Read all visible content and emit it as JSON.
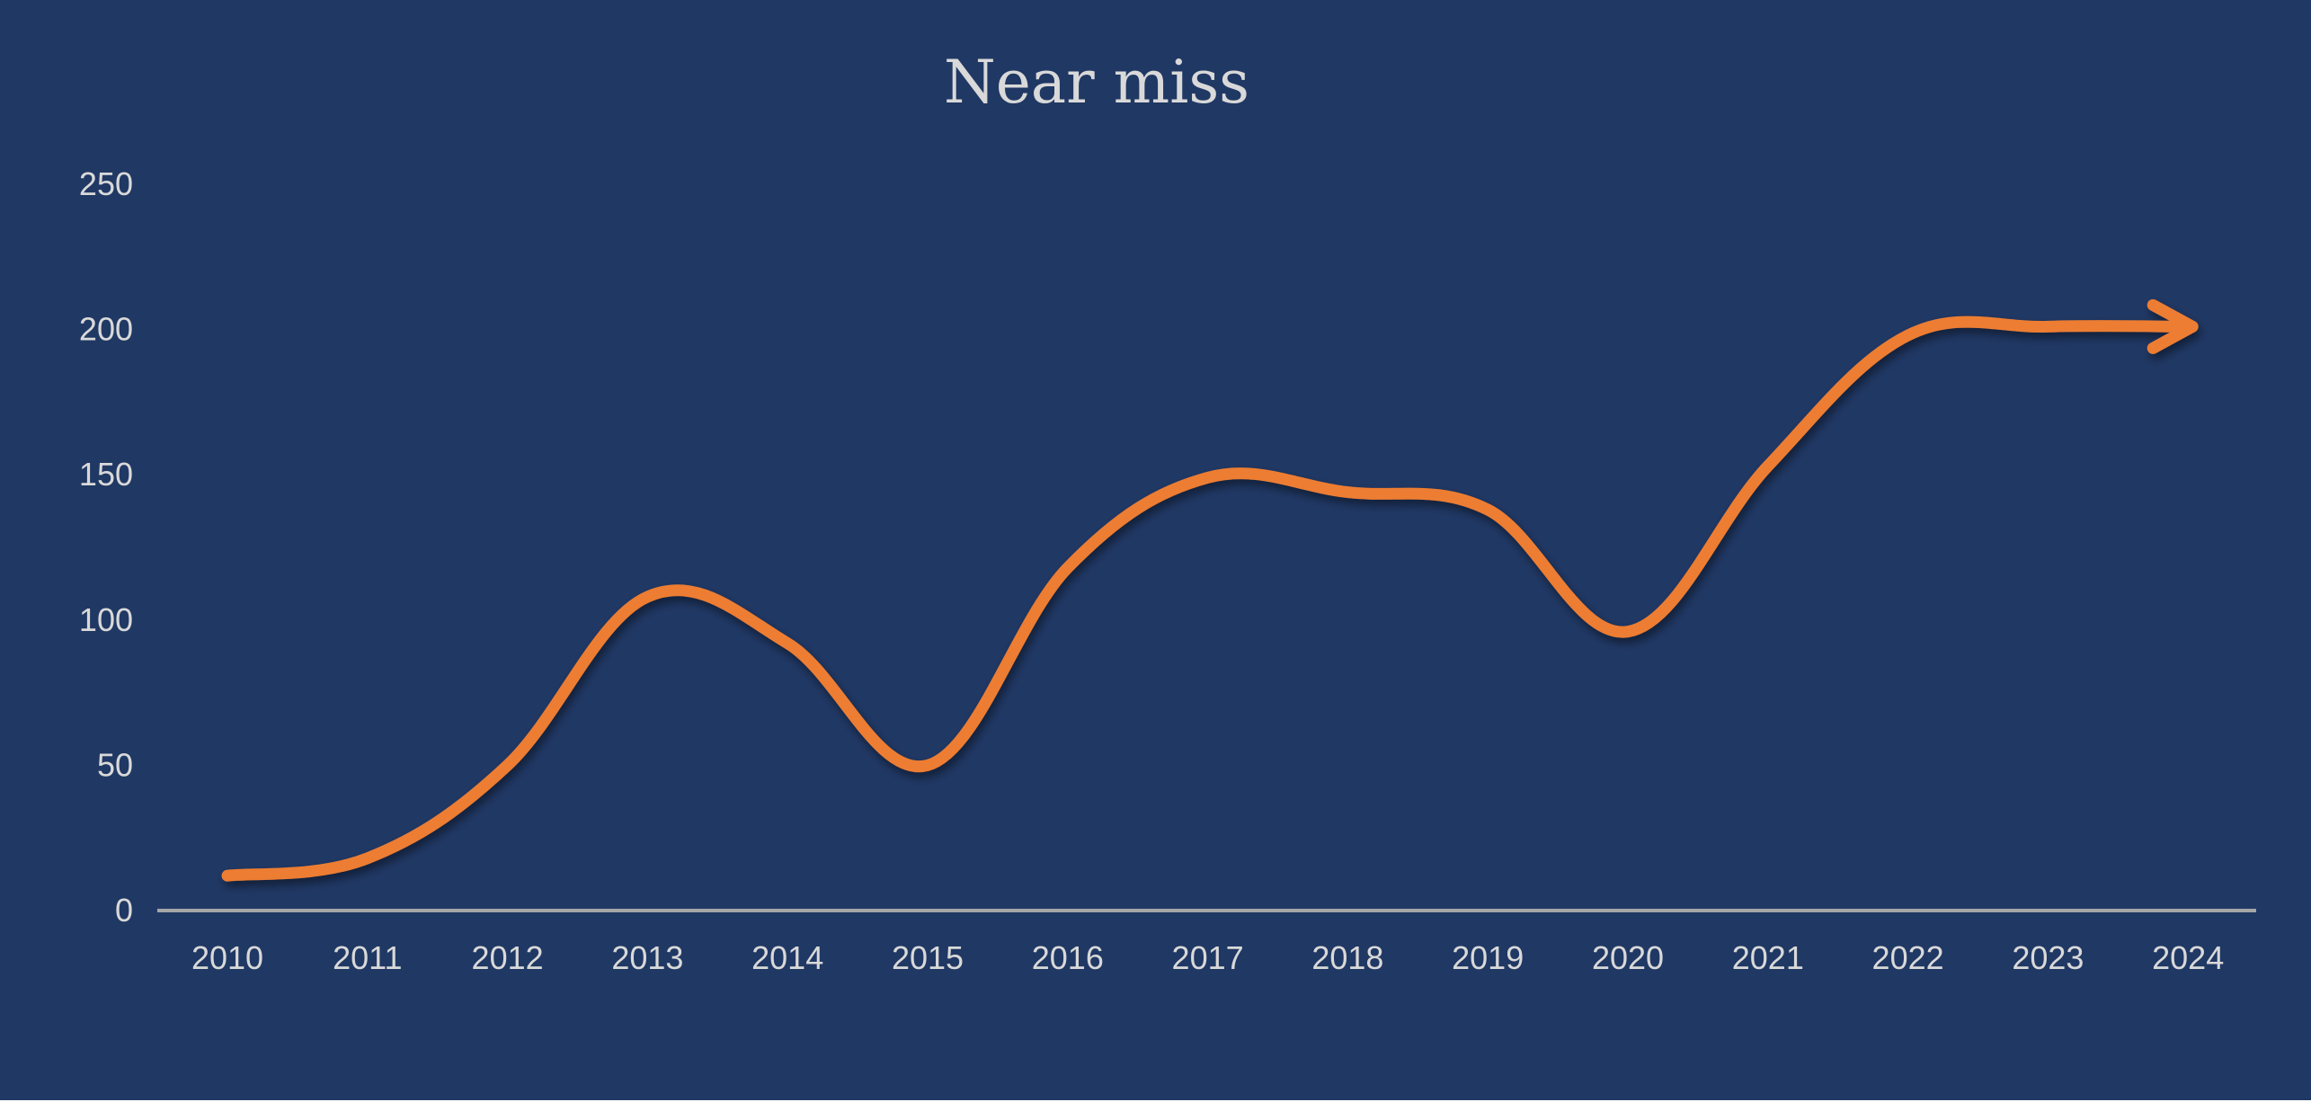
{
  "colors": {
    "background": "#203864",
    "line": "#ED7D31",
    "axis": "#A6A6A6",
    "text": "#D9D9D9"
  },
  "chart_data": {
    "type": "line",
    "title": "Near miss",
    "xlabel": "",
    "ylabel": "",
    "categories": [
      "2010",
      "2011",
      "2012",
      "2013",
      "2014",
      "2015",
      "2016",
      "2017",
      "2018",
      "2019",
      "2020",
      "2021",
      "2022",
      "2023",
      "2024"
    ],
    "series": [
      {
        "values": [
          12,
          18,
          50,
          108,
          92,
          50,
          118,
          149,
          144,
          138,
          96,
          153,
          198,
          201,
          201
        ]
      }
    ],
    "ylim": [
      0,
      250
    ],
    "yticks": [
      0,
      50,
      100,
      150,
      200,
      250
    ],
    "smooth": true,
    "end_marker": "arrow",
    "grid": false,
    "legend": "none"
  }
}
